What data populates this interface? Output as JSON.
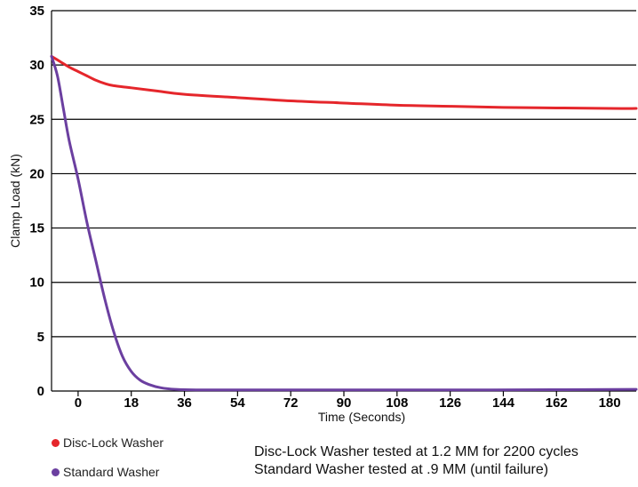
{
  "chart_data": {
    "type": "line",
    "xlabel": "Time (Seconds)",
    "ylabel": "Clamp Load (kN)",
    "x_ticks": [
      0,
      18,
      36,
      54,
      72,
      90,
      108,
      126,
      144,
      162,
      180
    ],
    "y_ticks": [
      0,
      5,
      10,
      15,
      20,
      25,
      30,
      35
    ],
    "xlim": [
      -9,
      189
    ],
    "ylim": [
      0,
      35
    ],
    "grid": "horizontal",
    "legend_position": "bottom-left",
    "series": [
      {
        "name": "Disc-Lock Washer",
        "color": "#e5262b",
        "points": [
          [
            -9,
            30.8
          ],
          [
            -6,
            30.3
          ],
          [
            -3,
            29.8
          ],
          [
            0,
            29.4
          ],
          [
            3,
            29.0
          ],
          [
            6,
            28.6
          ],
          [
            9,
            28.3
          ],
          [
            12,
            28.1
          ],
          [
            18,
            27.9
          ],
          [
            27,
            27.6
          ],
          [
            36,
            27.3
          ],
          [
            54,
            27.0
          ],
          [
            72,
            26.7
          ],
          [
            90,
            26.5
          ],
          [
            108,
            26.3
          ],
          [
            126,
            26.2
          ],
          [
            144,
            26.1
          ],
          [
            162,
            26.05
          ],
          [
            180,
            26.0
          ],
          [
            189,
            26.0
          ]
        ]
      },
      {
        "name": "Standard Washer",
        "color": "#6b3fa0",
        "points": [
          [
            -9,
            30.8
          ],
          [
            -7,
            29.0
          ],
          [
            -5,
            26.0
          ],
          [
            -3,
            23.0
          ],
          [
            0,
            19.5
          ],
          [
            3,
            15.5
          ],
          [
            6,
            12.0
          ],
          [
            9,
            8.5
          ],
          [
            12,
            5.5
          ],
          [
            15,
            3.2
          ],
          [
            18,
            1.8
          ],
          [
            21,
            1.0
          ],
          [
            24,
            0.6
          ],
          [
            28,
            0.3
          ],
          [
            33,
            0.15
          ],
          [
            40,
            0.1
          ],
          [
            60,
            0.1
          ],
          [
            100,
            0.1
          ],
          [
            140,
            0.1
          ],
          [
            189,
            0.15
          ]
        ]
      }
    ]
  },
  "notes": [
    "Disc-Lock Washer tested at 1.2 MM for 2200 cycles",
    "Standard Washer tested at .9 MM (until failure)"
  ]
}
